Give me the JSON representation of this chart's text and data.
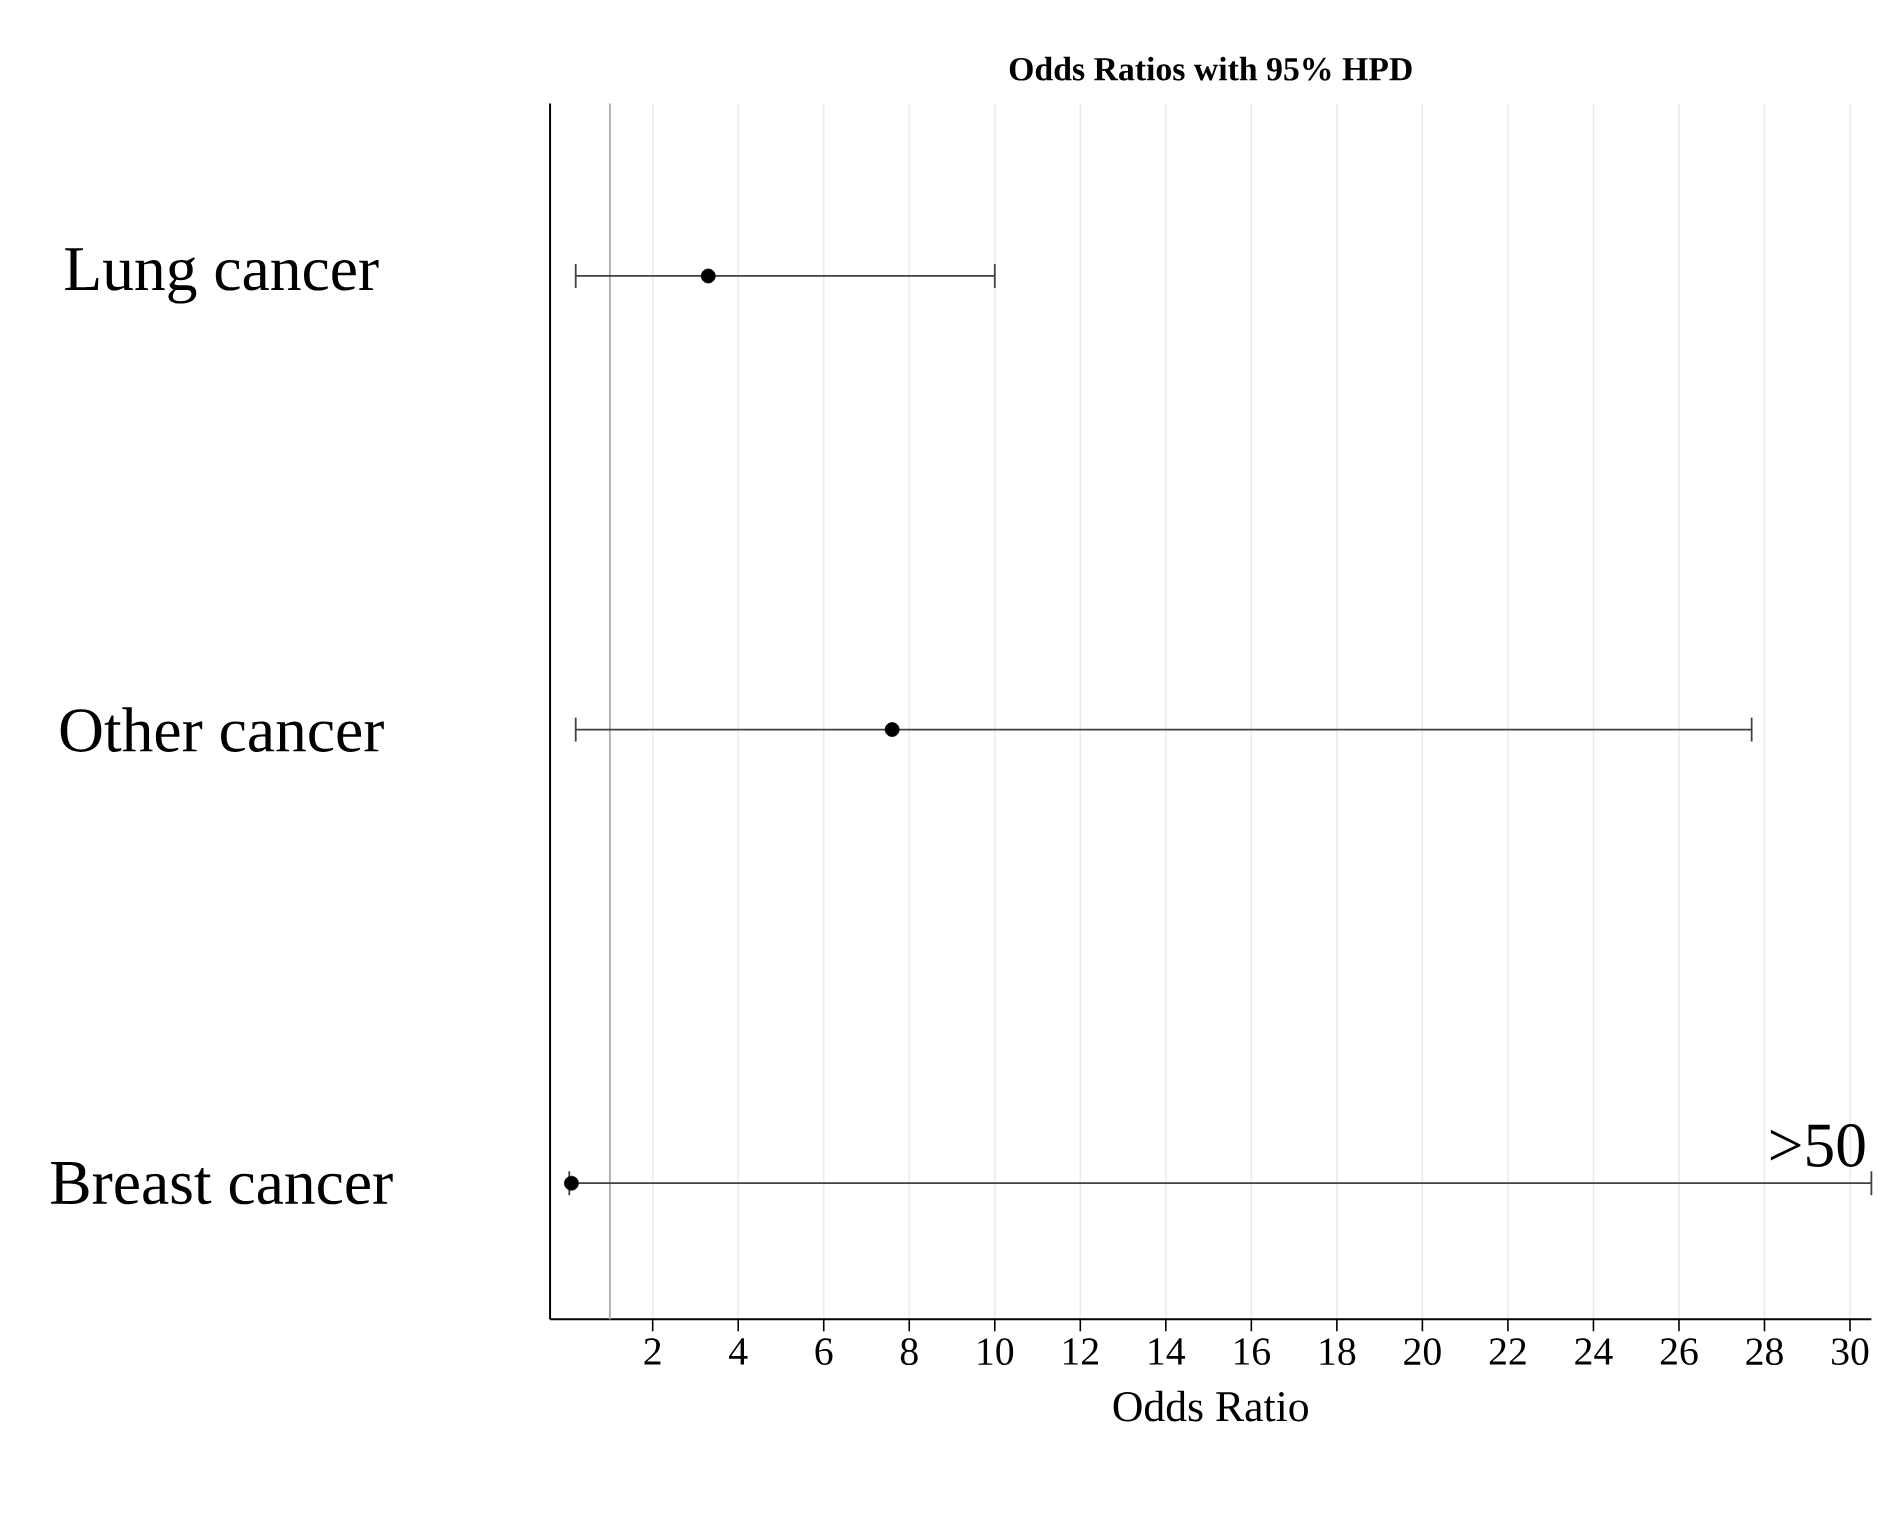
{
  "chart_data": {
    "type": "scatter",
    "title": "Odds Ratios with 95% HPD",
    "xlabel": "Odds Ratio",
    "orientation": "horizontal",
    "categories": [
      "Lung cancer",
      "Other cancer",
      "Breast cancer"
    ],
    "values": [
      3.3,
      7.6,
      0.1
    ],
    "errors": [
      [
        0.2,
        10
      ],
      [
        0.2,
        27.7
      ],
      [
        0.05,
        30.5
      ]
    ],
    "color": "#000000",
    "xlim": [
      -0.4,
      30.5
    ],
    "xticks": [
      2,
      4,
      6,
      8,
      10,
      12,
      14,
      16,
      18,
      20,
      22,
      24,
      26,
      28,
      30
    ],
    "grid": "x",
    "ref_lines": [
      {
        "axis": "x",
        "value": 1,
        "color": "#b3b3b3"
      }
    ],
    "annotations": [
      ">50"
    ]
  }
}
